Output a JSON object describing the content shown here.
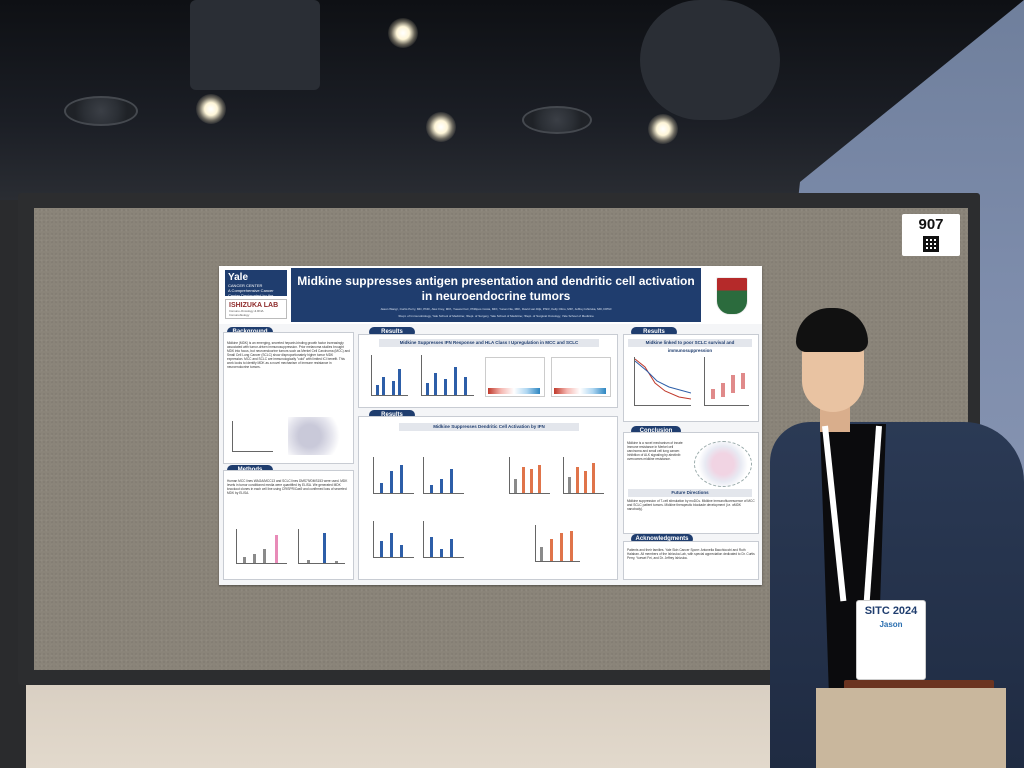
{
  "scene": {
    "booth_number": "907"
  },
  "poster": {
    "logo": {
      "name": "Yale",
      "unit": "CANCER CENTER",
      "tagline": "A Comprehensive Cancer Center Designated by the National Cancer Institute"
    },
    "lab": {
      "name": "ISHIZUKA LAB",
      "tagline": "Immuno-Oncology & RNA Immunobiology"
    },
    "title": "Midkine suppresses antigen presentation and dendritic cell activation in neuroendocrine tumors",
    "authors": "Jason Wang¹, Curtis Perry, MD, PhD¹, Alex Frey, MD¹, Yuewei Fei¹, Phillipos Costa, MD¹, Yunan Nie, MD¹, David van Dijk, PhD², Kelly Olino, MD³, Jeffrey Ishizuka, MD, DPhil¹",
    "affiliations": "¹Dept. of Immunobiology, Yale School of Medicine; ²Dept. of Surgery, Yale School of Medicine; ³Dept. of Surgical Oncology, Yale School of Medicine",
    "sections": {
      "background": "Background",
      "methods": "Methods",
      "results_a": "Results",
      "results_b": "Results",
      "results_c": "Results",
      "conclusion": "Conclusion",
      "future": "Future Directions",
      "ack": "Acknowledgments"
    },
    "subheads": {
      "ifn": "Midkine Suppresses IFN Response and HLA Class I Upregulation in MCC and SCLC",
      "dc": "Midkine Suppresses Dendritic Cell Activation by IFN",
      "survival": "Midkine linked to poor SCLC survival and immunosuppression"
    },
    "background_text": "Midkine (MDK) is an emerging, secreted heparin-binding growth factor increasingly associated with tumor-driven immunosuppression. Prior melanoma studies brought MDK into focus, but neuroendocrine tumors such as Merkel Cell Carcinoma (MCC) and Small Cell Lung Cancer (SCLC) show disproportionately higher tumor MDK expression. MCC and SCLC are immunologically \"cold\" with limited ICI benefit. This work looks to identify MDK as a novel mechanism of immune resistance in neuroendocrine tumors.",
    "methods_text": "Human MCC lines WAGA/MCC13 and SCLC lines DMS79/DMS153 were used. MDK levels in tumor conditioned media were quantified by ELISA. We generated MDK knockout clones in each cell line using CRISPR/Cas9 and confirmed loss of secreted MDK by ELISA.",
    "conclusion_text": "Midkine is a novel mechanism of innate immune resistance in Merkel cell carcinoma and small cell lung cancer. Inhibition of ALK signaling by alectinib overcomes midkine resistance.",
    "future_text": "Midkine suppression of T-cell stimulation by moDCs. Midkine immunofluorescence of MCC and SCLC patient tumors. Midkine therapeutic blockade development (i.e. αMDK nanobody).",
    "ack_text": "Patients and their families. Yale Skin Cancer Spore: Antonella Bacchiocchi and Ruth Halaban. All members of the Ishizuka Lab, with special appreciation dedicated to Dr. Curtis Perry, Yuewei Fei, and Dr. Jeffrey Ishizuka."
  },
  "badge": {
    "event": "SITC 2024",
    "first_name": "Jason"
  },
  "colors": {
    "poster_navy": "#1f3d6e",
    "board_gray": "#8a8479",
    "bar_blue": "#2d5ea8",
    "bar_orange": "#e0744a"
  }
}
